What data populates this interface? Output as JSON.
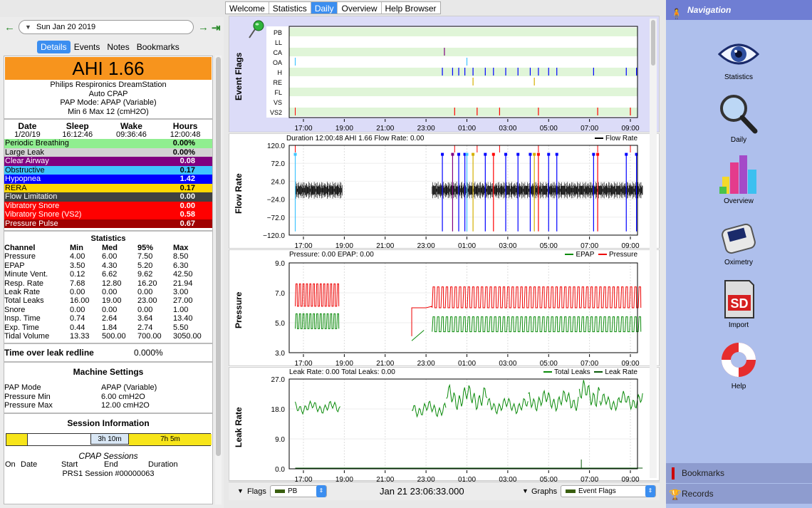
{
  "main_tabs": [
    "Welcome",
    "Statistics",
    "Daily",
    "Overview",
    "Help Browser"
  ],
  "active_tab": "Daily",
  "date": "Sun Jan 20 2019",
  "left_tabs": [
    "Details",
    "Events",
    "Notes",
    "Bookmarks"
  ],
  "ahi": "AHI 1.66",
  "machine": {
    "name": "Philips Respironics DreamStation",
    "type": "Auto CPAP",
    "pap_mode": "PAP Mode: APAP (Variable)",
    "range": "Min 6 Max 12 (cmH2O)"
  },
  "sleep": {
    "headers": [
      "Date",
      "Sleep",
      "Wake",
      "Hours"
    ],
    "values": [
      "1/20/19",
      "16:12:46",
      "09:36:46",
      "12:00:48"
    ]
  },
  "indices": [
    {
      "label": "Periodic Breathing",
      "value": "0.00%",
      "bg": "#90ee90",
      "fg": "#000000"
    },
    {
      "label": "Large Leak",
      "value": "0.00%",
      "bg": "#d3d3d3",
      "fg": "#000000"
    },
    {
      "label": "Clear Airway",
      "value": "0.08",
      "bg": "#800080",
      "fg": "#ffffff"
    },
    {
      "label": "Obstructive",
      "value": "0.17",
      "bg": "#40c4ff",
      "fg": "#000000"
    },
    {
      "label": "Hypopnea",
      "value": "1.42",
      "bg": "#0000ff",
      "fg": "#ffffff"
    },
    {
      "label": "RERA",
      "value": "0.17",
      "bg": "#ffd700",
      "fg": "#000000"
    },
    {
      "label": "Flow Limitation",
      "value": "0.00",
      "bg": "#404040",
      "fg": "#ffffff"
    },
    {
      "label": "Vibratory Snore",
      "value": "0.00",
      "bg": "#ff0000",
      "fg": "#ffffff"
    },
    {
      "label": "Vibratory Snore (VS2)",
      "value": "0.58",
      "bg": "#ff0000",
      "fg": "#ffffff"
    },
    {
      "label": "Pressure Pulse",
      "value": "0.67",
      "bg": "#a00000",
      "fg": "#ffffff"
    }
  ],
  "statistics": {
    "title": "Statistics",
    "headers": [
      "Channel",
      "Min",
      "Med",
      "95%",
      "Max"
    ],
    "rows": [
      [
        "Pressure",
        "4.00",
        "6.00",
        "7.50",
        "8.50"
      ],
      [
        "EPAP",
        "3.50",
        "4.30",
        "5.20",
        "6.30"
      ],
      [
        "Minute Vent.",
        "0.12",
        "6.62",
        "9.62",
        "42.50"
      ],
      [
        "Resp. Rate",
        "7.68",
        "12.80",
        "16.20",
        "21.94"
      ],
      [
        "Leak Rate",
        "0.00",
        "0.00",
        "0.00",
        "3.00"
      ],
      [
        "Total Leaks",
        "16.00",
        "19.00",
        "23.00",
        "27.00"
      ],
      [
        "Snore",
        "0.00",
        "0.00",
        "0.00",
        "1.00"
      ],
      [
        "Insp. Time",
        "0.74",
        "2.64",
        "3.64",
        "13.40"
      ],
      [
        "Exp. Time",
        "0.44",
        "1.84",
        "2.74",
        "5.50"
      ],
      [
        "Tidal Volume",
        "13.33",
        "500.00",
        "700.00",
        "3050.00"
      ]
    ]
  },
  "leak_redline": {
    "label": "Time over leak redline",
    "value": "0.000%"
  },
  "machine_settings": {
    "title": "Machine Settings",
    "rows": [
      {
        "k": "PAP Mode",
        "v": "APAP (Variable)"
      },
      {
        "k": "Pressure Min",
        "v": "6.00 cmH2O"
      },
      {
        "k": "Pressure Max",
        "v": "12.00 cmH2O"
      }
    ]
  },
  "session_info": {
    "title": "Session Information",
    "gap_label": "3h 10m",
    "session_label": "7h 5m",
    "cpap_title": "CPAP Sessions",
    "headers": [
      "On",
      "Date",
      "Start",
      "End",
      "Duration"
    ],
    "row": "PRS1 Session #00000063"
  },
  "time_ticks": [
    "17:00",
    "19:00",
    "21:00",
    "23:00",
    "01:00",
    "03:00",
    "05:00",
    "07:00",
    "09:00"
  ],
  "event_flags": {
    "ylabel": "Event Flags",
    "rows": [
      "PB",
      "LL",
      "CA",
      "OA",
      "H",
      "RE",
      "FL",
      "VS",
      "VS2"
    ]
  },
  "flow": {
    "ylabel": "Flow Rate",
    "header": "Duration 12:00:48 AHI 1.66 Flow Rate: 0.00",
    "legend": "Flow Rate",
    "yticks": [
      "120.0",
      "72.0",
      "24.0",
      "−24.0",
      "−72.0",
      "−120.0"
    ]
  },
  "pressure": {
    "ylabel": "Pressure",
    "header": "Pressure: 0.00 EPAP: 0.00",
    "legend": [
      "EPAP",
      "Pressure"
    ],
    "yticks": [
      "9.0",
      "7.0",
      "5.0",
      "3.0"
    ]
  },
  "leak": {
    "ylabel": "Leak Rate",
    "header": "Leak Rate: 0.00 Total Leaks: 0.00",
    "legend": [
      "Total Leaks",
      "Leak Rate"
    ],
    "yticks": [
      "27.0",
      "18.0",
      "9.0",
      "0.0"
    ]
  },
  "bottom": {
    "flags_label": "Flags",
    "flags_value": "PB",
    "timestamp": "Jan 21 23:06:33.000",
    "graphs_label": "Graphs",
    "graphs_value": "Event Flags"
  },
  "navigation": {
    "title": "Navigation",
    "items": [
      "Statistics",
      "Daily",
      "Overview",
      "Oximetry",
      "Import",
      "Help"
    ],
    "footer": [
      "Bookmarks",
      "Records"
    ]
  },
  "colors": {
    "accent": "#3b8ef0",
    "ahi_bg": "#f7941d",
    "nav_bg": "#aebfec"
  }
}
